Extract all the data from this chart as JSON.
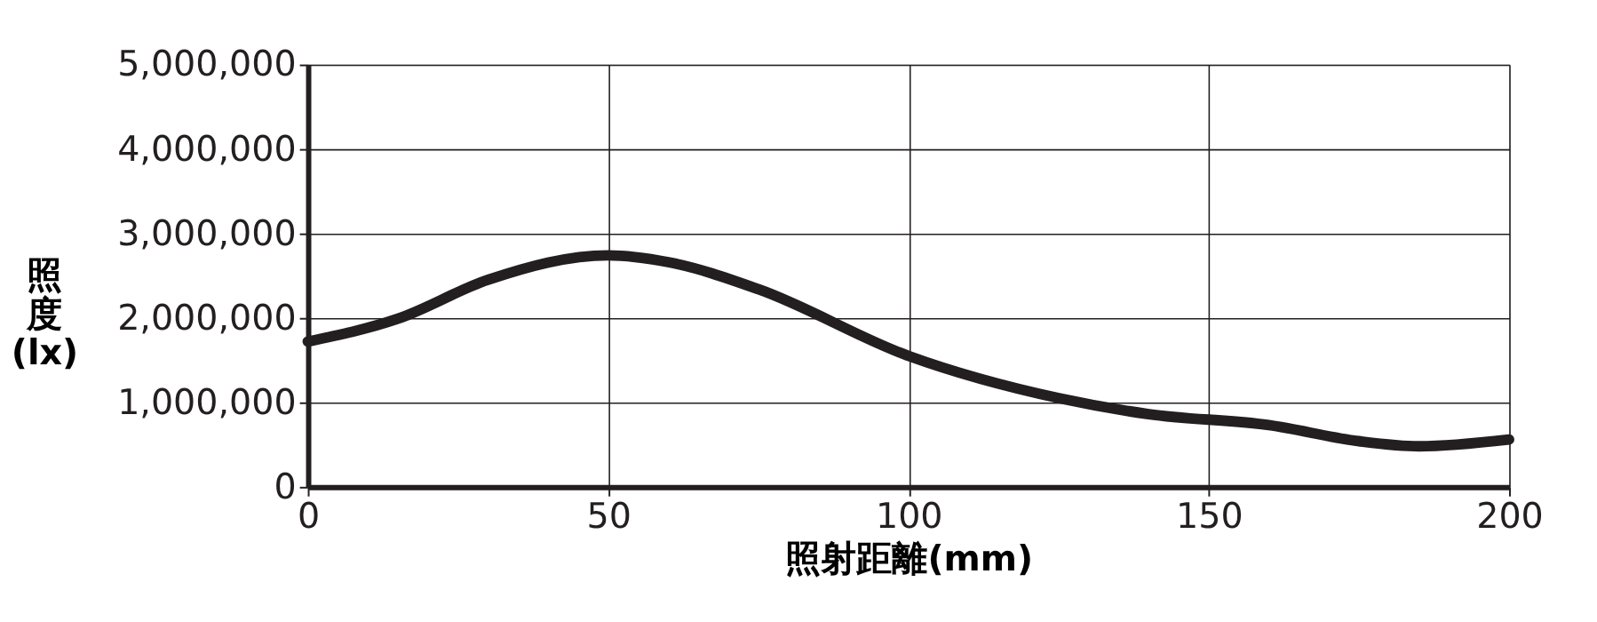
{
  "chart_data": {
    "type": "line",
    "xlabel": "照射距離(mm)",
    "ylabel": "照度(lx)",
    "x": [
      0,
      15,
      30,
      50,
      60,
      75,
      100,
      125,
      140,
      160,
      175,
      185,
      200
    ],
    "series": [
      {
        "color": "#231f20",
        "values": [
          1720000,
          1990000,
          2450000,
          2740000,
          2660000,
          2340000,
          1550000,
          1050000,
          860000,
          730000,
          540000,
          480000,
          560000
        ]
      }
    ],
    "xlim": [
      0,
      200
    ],
    "xticks": [
      0,
      50,
      100,
      150,
      200
    ],
    "ylim": [
      0,
      5000000
    ],
    "yticks": [
      {
        "value": 0,
        "label": "0"
      },
      {
        "value": 1000000,
        "label": "1,000,000"
      },
      {
        "value": 2000000,
        "label": "2,000,000"
      },
      {
        "value": 3000000,
        "label": "3,000,000"
      },
      {
        "value": 4000000,
        "label": "4,000,000"
      },
      {
        "value": 5000000,
        "label": "5,000,000"
      }
    ],
    "grid": true,
    "marker": "none",
    "line_style": "solid"
  }
}
